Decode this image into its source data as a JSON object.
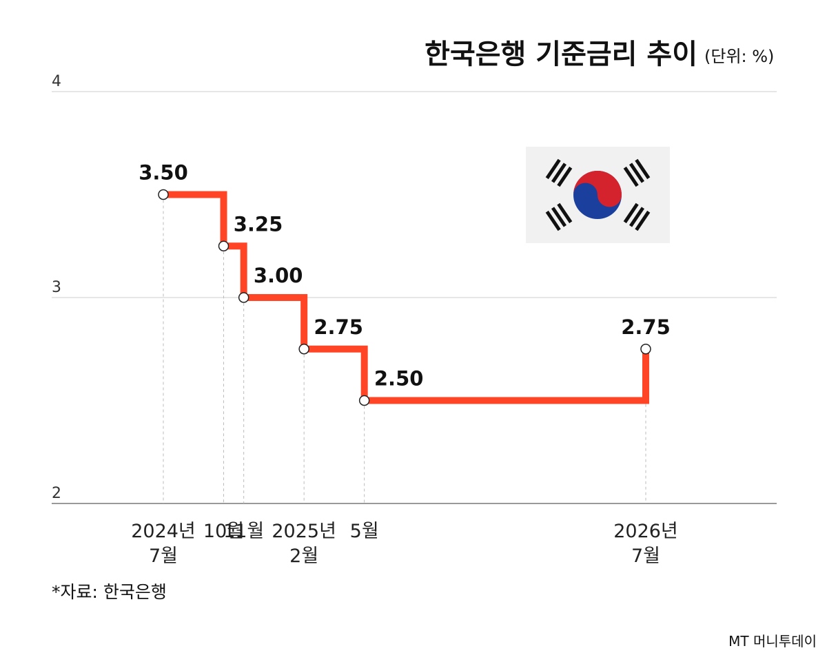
{
  "chart_data": {
    "type": "step",
    "title": "한국은행 기준금리 추이",
    "subtitle": "(단위: %)",
    "source": "*자료: 한국은행",
    "watermark": "MT 머니투데이",
    "x": [
      "2024-07",
      "2024-10",
      "2024-11",
      "2025-02",
      "2025-05",
      "2026-07"
    ],
    "xticks": [
      {
        "value": "2024-07",
        "label": [
          "2024년",
          "7월"
        ]
      },
      {
        "value": "2024-10",
        "label": [
          "10월"
        ]
      },
      {
        "value": "2024-11",
        "label": [
          "11월"
        ]
      },
      {
        "value": "2025-02",
        "label": [
          "2025년",
          "2월"
        ]
      },
      {
        "value": "2025-05",
        "label": [
          "5월"
        ]
      },
      {
        "value": "2026-07",
        "label": [
          "2026년",
          "7월"
        ]
      }
    ],
    "series": [
      {
        "color": "#ff4526",
        "values": [
          3.5,
          3.25,
          3.0,
          2.75,
          2.5,
          2.75
        ],
        "value_labels": [
          "3.50",
          "3.25",
          "3.00",
          "2.75",
          "2.50",
          "2.75"
        ]
      }
    ],
    "ylim": [
      2,
      4
    ],
    "yticks": [
      2,
      3,
      4
    ],
    "grid": true
  }
}
